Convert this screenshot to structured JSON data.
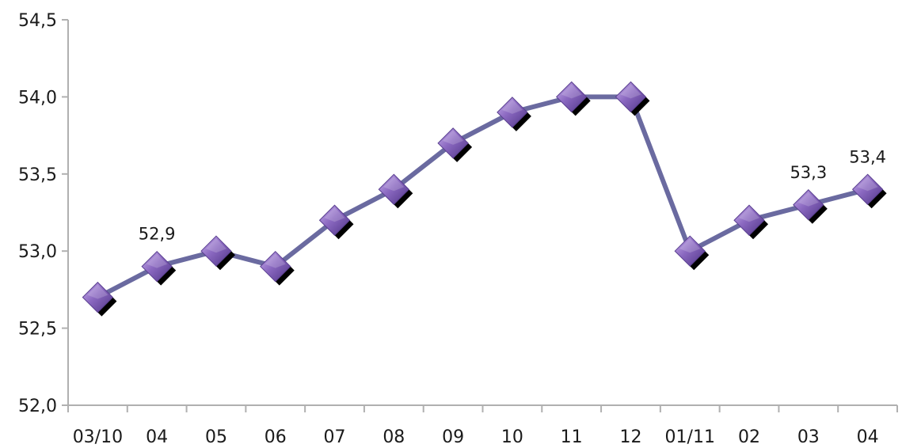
{
  "chart_data": {
    "type": "line",
    "title": "",
    "xlabel": "",
    "ylabel": "",
    "categories": [
      "03/10",
      "04",
      "05",
      "06",
      "07",
      "08",
      "09",
      "10",
      "11",
      "12",
      "01/11",
      "02",
      "03",
      "04"
    ],
    "series": [
      {
        "values": [
          52.7,
          52.9,
          53.0,
          52.9,
          53.2,
          53.4,
          53.7,
          53.9,
          54.0,
          54.0,
          53.0,
          53.2,
          53.3,
          53.4
        ]
      }
    ],
    "data_labels": [
      {
        "index": 1,
        "text": "52,9"
      },
      {
        "index": 12,
        "text": "53,3"
      },
      {
        "index": 13,
        "text": "53,4"
      }
    ],
    "ylim": [
      52.0,
      54.5
    ],
    "yticks": [
      52.0,
      52.5,
      53.0,
      53.5,
      54.0,
      54.5
    ],
    "ytick_labels": [
      "52,0",
      "52,5",
      "53,0",
      "53,5",
      "54,0",
      "54,5"
    ],
    "grid": false,
    "legend": "none",
    "colors": {
      "line": "#6a6aa0",
      "marker_fill": "#8a68c0",
      "marker_shadow": "#000000",
      "axis": "#b0b0b0"
    }
  }
}
